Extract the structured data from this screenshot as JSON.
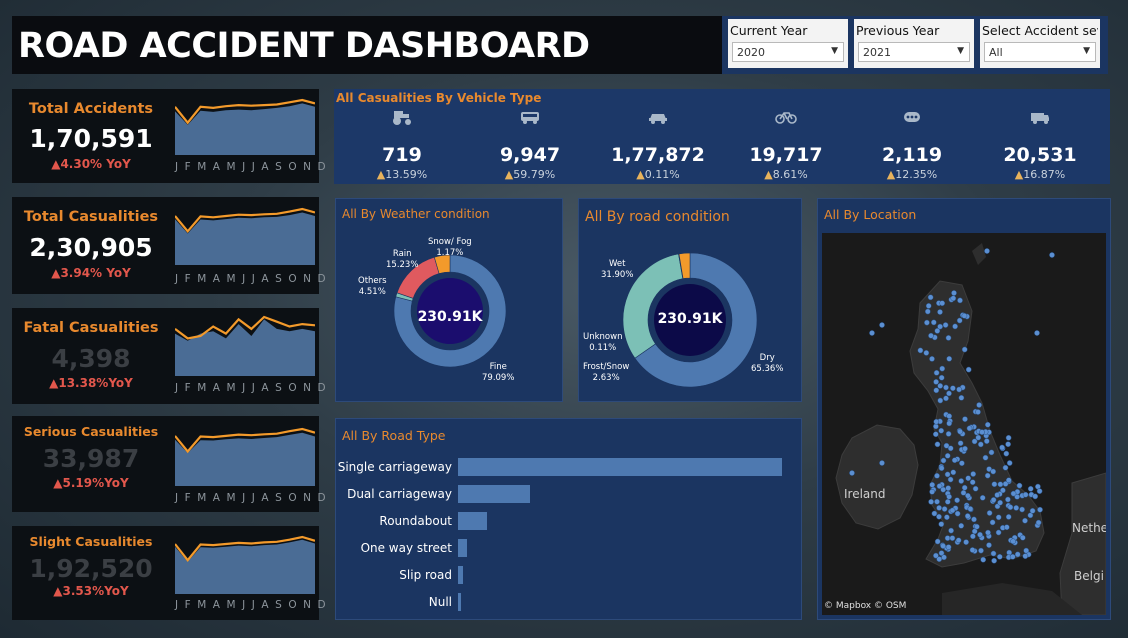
{
  "header": {
    "title": "ROAD ACCIDENT DASHBOARD"
  },
  "filters": [
    {
      "label": "Current Year",
      "value": "2020"
    },
    {
      "label": "Previous Year",
      "value": "2021"
    },
    {
      "label": "Select Accident sev..",
      "value": "All"
    }
  ],
  "kpis": [
    {
      "label": "Total Accidents",
      "value": "1,70,591",
      "yoy": "▲4.30% YoY",
      "value_muted": false
    },
    {
      "label": "Total Casualities",
      "value": "2,30,905",
      "yoy": "▲3.94% YoY",
      "value_muted": false
    },
    {
      "label": "Fatal Casualities",
      "value": "4,398",
      "yoy": "▲13.38%YoY",
      "value_muted": true
    },
    {
      "label": "Serious Casualities",
      "value": "33,987",
      "yoy": "▲5.19%YoY",
      "value_muted": true
    },
    {
      "label": "Slight Casualities",
      "value": "1,92,520",
      "yoy": "▲3.53%YoY",
      "value_muted": true
    }
  ],
  "month_axis": "J F M A M J J A S O N D",
  "vehicle": {
    "title": "All Casualities By Vehicle Type",
    "items": [
      {
        "icon": "tractor-icon",
        "value": "719",
        "yoy": "13.59%"
      },
      {
        "icon": "bus-icon",
        "value": "9,947",
        "yoy": "59.79%"
      },
      {
        "icon": "car-icon",
        "value": "1,77,872",
        "yoy": "0.11%"
      },
      {
        "icon": "bicycle-icon",
        "value": "19,717",
        "yoy": "8.61%"
      },
      {
        "icon": "other-vehicle-icon",
        "value": "2,119",
        "yoy": "12.35%"
      },
      {
        "icon": "van-icon",
        "value": "20,531",
        "yoy": "16.87%"
      }
    ]
  },
  "weather": {
    "title": "All By Weather condition",
    "center": "230.91K",
    "labels": {
      "snow": [
        "Snow/ Fog",
        "1.17%"
      ],
      "rain": [
        "Rain",
        "15.23%"
      ],
      "others": [
        "Others",
        "4.51%"
      ],
      "fine": [
        "Fine",
        "79.09%"
      ]
    }
  },
  "road_condition": {
    "title": "All By road condition",
    "center": "230.91K",
    "labels": {
      "wet": [
        "Wet",
        "31.90%"
      ],
      "unknown": [
        "Unknown",
        "0.11%"
      ],
      "frost": [
        "Frost/Snow",
        "2.63%"
      ],
      "dry": [
        "Dry",
        "65.36%"
      ]
    }
  },
  "road_type": {
    "title": "All By Road Type"
  },
  "location": {
    "title": "All  By Location",
    "labels": {
      "ireland": "Ireland",
      "netherlands": "Nethe",
      "belgium": "Belgi"
    },
    "attribution": "© Mapbox © OSM"
  },
  "colors": {
    "accent": "#e8892e",
    "negative": "#e2574c",
    "series": "#4e79b0",
    "navy": "#1b3561",
    "orange_line": "#f39a2b",
    "rain": "#e05a5f",
    "others": "#f39a2b",
    "snow": "#7cc0b6",
    "wet": "#7cc0b6",
    "unknown": "#3fa07a",
    "frost": "#f39a2b",
    "fine_dry": "#4e79b0"
  },
  "chart_data": [
    {
      "type": "pie",
      "title": "All By Weather condition",
      "categories": [
        "Fine",
        "Snow/ Fog",
        "Rain",
        "Others"
      ],
      "values": [
        79.09,
        1.17,
        15.23,
        4.51
      ],
      "unit": "%"
    },
    {
      "type": "pie",
      "title": "All By road condition",
      "categories": [
        "Dry",
        "Wet",
        "Unknown",
        "Frost/Snow"
      ],
      "values": [
        65.36,
        31.9,
        0.11,
        2.63
      ],
      "unit": "%"
    },
    {
      "type": "bar",
      "orientation": "horizontal",
      "title": "All By Road Type",
      "categories": [
        "Single carriageway",
        "Dual carriageway",
        "Roundabout",
        "One way street",
        "Slip road",
        "Null"
      ],
      "values": [
        163000,
        36000,
        14500,
        4300,
        2500,
        1300
      ]
    },
    {
      "type": "area",
      "title": "Total Accidents",
      "categories": [
        "J",
        "F",
        "M",
        "A",
        "M",
        "J",
        "J",
        "A",
        "S",
        "O",
        "N",
        "D"
      ],
      "series": [
        {
          "values": [
            15000,
            12200,
            15000,
            14800,
            15100,
            15300,
            15200,
            15300,
            15400,
            15800,
            16200,
            15600
          ]
        },
        {
          "values": [
            14200,
            11800,
            14300,
            14100,
            14400,
            14500,
            14400,
            14600,
            14800,
            15100,
            15600,
            15000
          ]
        }
      ]
    },
    {
      "type": "area",
      "title": "Total Casualities",
      "categories": [
        "J",
        "F",
        "M",
        "A",
        "M",
        "J",
        "J",
        "A",
        "S",
        "O",
        "N",
        "D"
      ],
      "series": [
        {
          "values": [
            20000,
            16500,
            19900,
            19700,
            20000,
            20300,
            20200,
            20400,
            20500,
            21000,
            21600,
            20800
          ]
        },
        {
          "values": [
            19300,
            16000,
            19200,
            19000,
            19300,
            19600,
            19500,
            19700,
            19800,
            20200,
            20800,
            20000
          ]
        }
      ]
    },
    {
      "type": "area",
      "title": "Fatal Casualities",
      "categories": [
        "J",
        "F",
        "M",
        "A",
        "M",
        "J",
        "J",
        "A",
        "S",
        "O",
        "N",
        "D"
      ],
      "series": [
        {
          "values": [
            380,
            340,
            350,
            390,
            360,
            420,
            380,
            430,
            410,
            390,
            400,
            395
          ]
        },
        {
          "values": [
            360,
            330,
            360,
            370,
            340,
            400,
            350,
            420,
            380,
            370,
            380,
            370
          ]
        }
      ]
    },
    {
      "type": "area",
      "title": "Serious Casualities",
      "categories": [
        "J",
        "F",
        "M",
        "A",
        "M",
        "J",
        "J",
        "A",
        "S",
        "O",
        "N",
        "D"
      ],
      "series": [
        {
          "values": [
            2900,
            2400,
            2880,
            2860,
            2900,
            2940,
            2920,
            2950,
            2970,
            3050,
            3120,
            3000
          ]
        },
        {
          "values": [
            2780,
            2350,
            2760,
            2750,
            2790,
            2820,
            2800,
            2830,
            2860,
            2930,
            3000,
            2880
          ]
        }
      ]
    },
    {
      "type": "area",
      "title": "Slight Casualities",
      "categories": [
        "J",
        "F",
        "M",
        "A",
        "M",
        "J",
        "J",
        "A",
        "S",
        "O",
        "N",
        "D"
      ],
      "series": [
        {
          "values": [
            16600,
            13600,
            16500,
            16400,
            16600,
            16800,
            16700,
            16900,
            17000,
            17400,
            17900,
            17200
          ]
        },
        {
          "values": [
            16100,
            13300,
            16000,
            15900,
            16100,
            16300,
            16200,
            16400,
            16500,
            16900,
            17400,
            16700
          ]
        }
      ]
    }
  ]
}
